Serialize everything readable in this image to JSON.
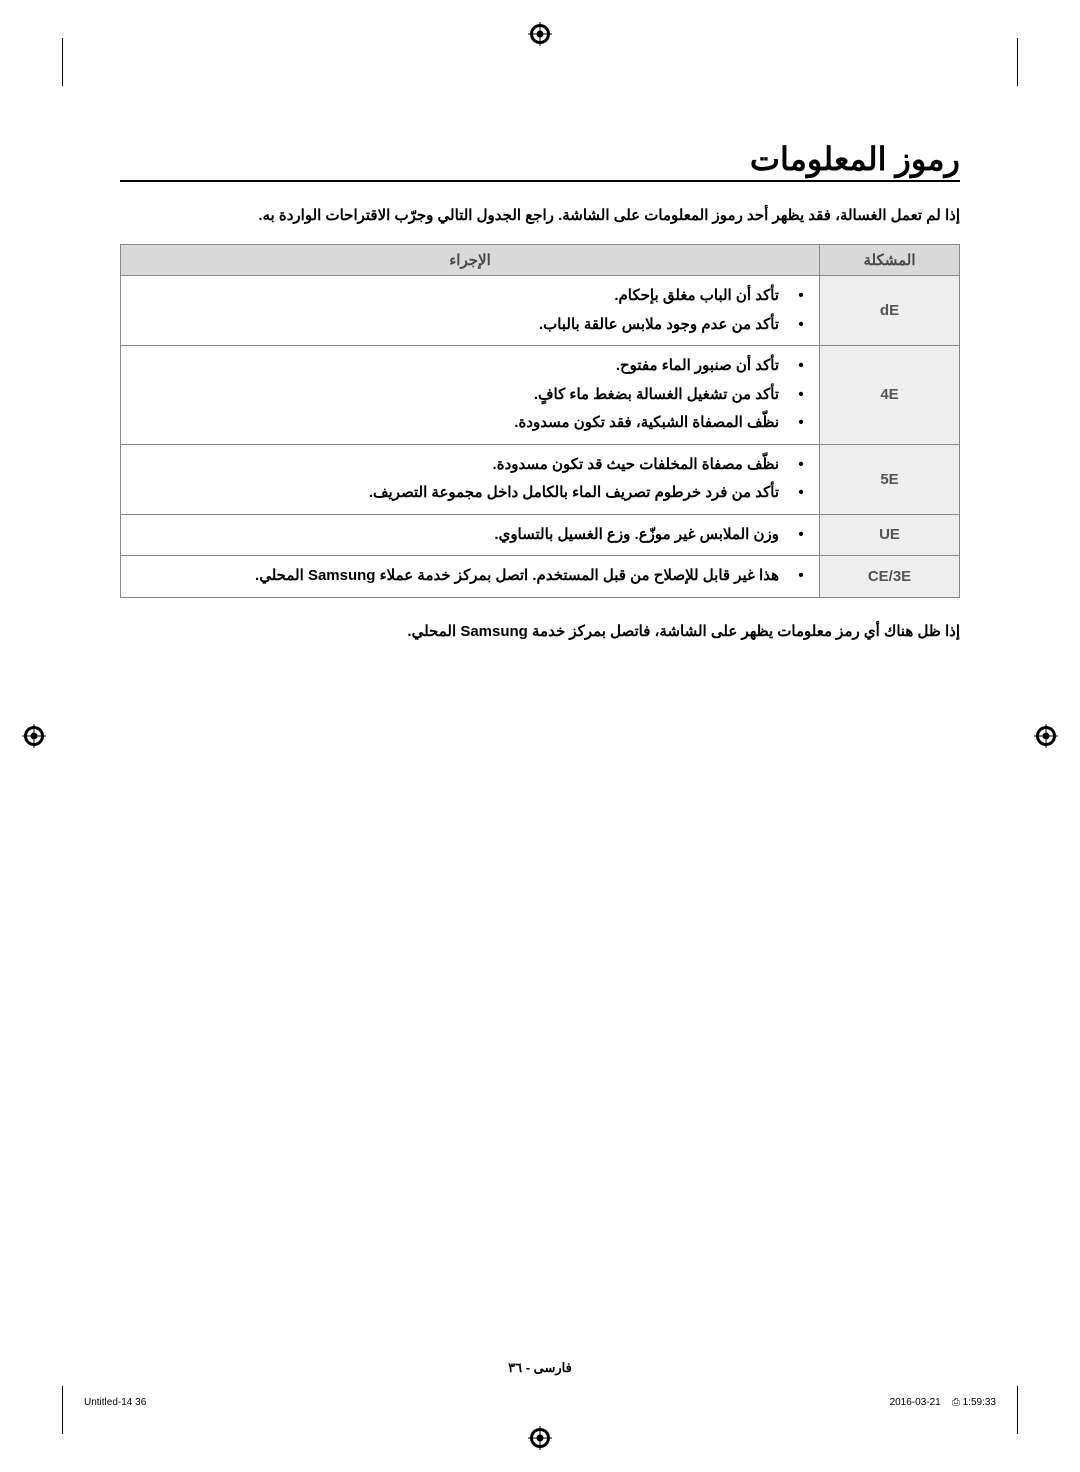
{
  "title": "رموز المعلومات",
  "intro": "إذا لم تعمل الغسالة، فقد يظهر أحد رموز المعلومات على الشاشة. راجع الجدول التالي وجرّب الاقتراحات الواردة به.",
  "table": {
    "headers": {
      "code": "المشكلة",
      "action": "الإجراء"
    },
    "rows": [
      {
        "code": "dE",
        "actions": [
          "تأكد أن الباب مغلق بإحكام.",
          "تأكد من عدم وجود ملابس عالقة بالباب."
        ]
      },
      {
        "code": "4E",
        "actions": [
          "تأكد أن صنبور الماء مفتوح.",
          "تأكد من تشغيل الغسالة بضغط ماء كافٍ.",
          "نظّف المصفاة الشبكية، فقد تكون مسدودة."
        ]
      },
      {
        "code": "5E",
        "actions": [
          "نظّف مصفاة المخلفات حيث قد تكون مسدودة.",
          "تأكد من فرد خرطوم تصريف الماء بالكامل داخل مجموعة التصريف."
        ]
      },
      {
        "code": "UE",
        "actions": [
          "وزن الملابس غير موزّع. وزع الغسيل بالتساوي."
        ]
      },
      {
        "code": "CE/3E",
        "actions": [
          "هذا غير قابل للإصلاح من قبل المستخدم. اتصل بمركز خدمة عملاء Samsung المحلي."
        ]
      }
    ]
  },
  "footnote": "إذا ظل هناك أي رمز معلومات يظهر على الشاشة، فاتصل بمركز خدمة Samsung المحلي.",
  "footer": {
    "center": "فارسی - ٣٦",
    "left": "Untitled-14   36",
    "right_date": "2016-03-21",
    "right_time": "1:59:33",
    "right_icon": "⎙"
  },
  "colors": {
    "header_bg": "#d9d9d9",
    "code_bg": "#eeeeee",
    "border": "#888888",
    "text_muted": "#555555"
  }
}
